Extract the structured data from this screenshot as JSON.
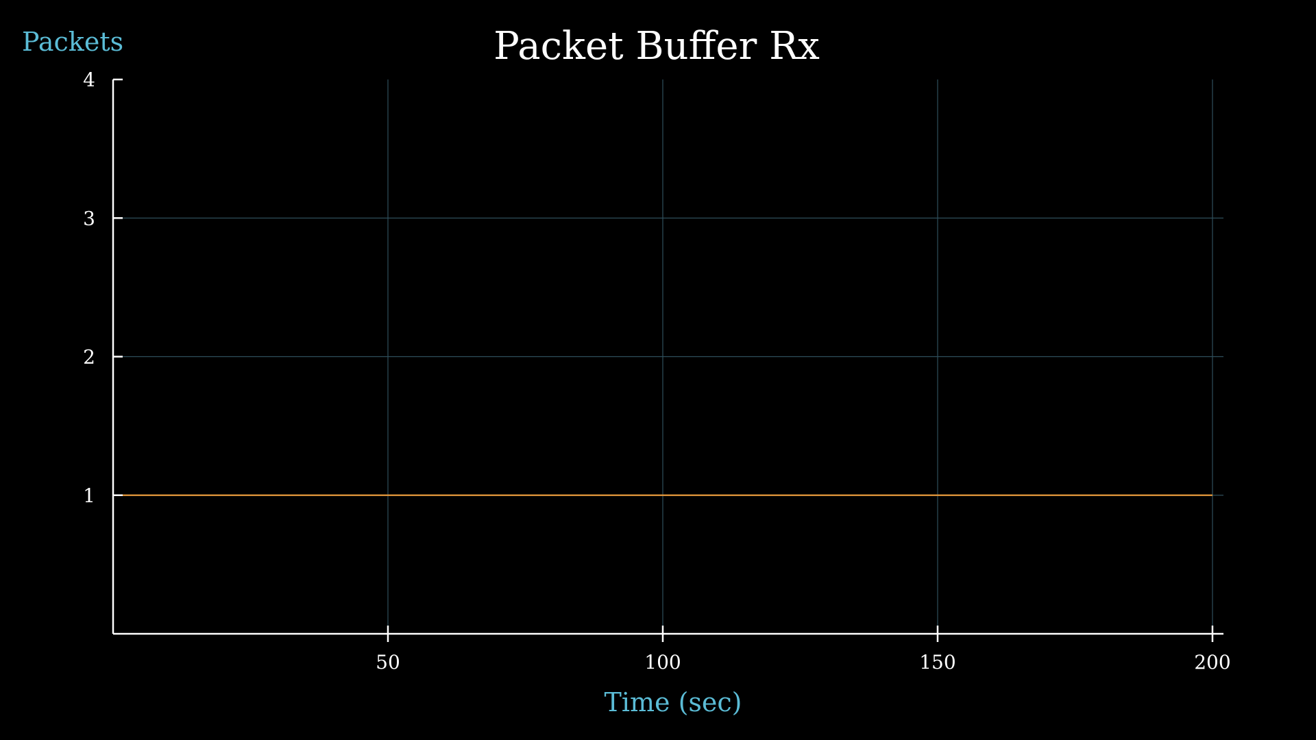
{
  "chart_data": {
    "type": "line",
    "title": "Packet Buffer Rx",
    "xlabel": "Time (sec)",
    "ylabel": "Packets",
    "xlim": [
      0,
      202
    ],
    "ylim": [
      0,
      4
    ],
    "xticks": [
      50,
      100,
      150,
      200
    ],
    "yticks": [
      1,
      2,
      3,
      4
    ],
    "x_tick_labels": [
      "50",
      "100",
      "150",
      "200"
    ],
    "y_tick_labels": [
      "1",
      "2",
      "3",
      "4"
    ],
    "grid": true,
    "series": [
      {
        "x": [
          1,
          200
        ],
        "y": [
          1,
          1
        ]
      }
    ]
  },
  "colors": {
    "background": "#000000",
    "axis": "#ffffff",
    "grid": "#2f4f5c",
    "label_accent": "#5bbcd6",
    "series_line": "#e89a3c"
  }
}
